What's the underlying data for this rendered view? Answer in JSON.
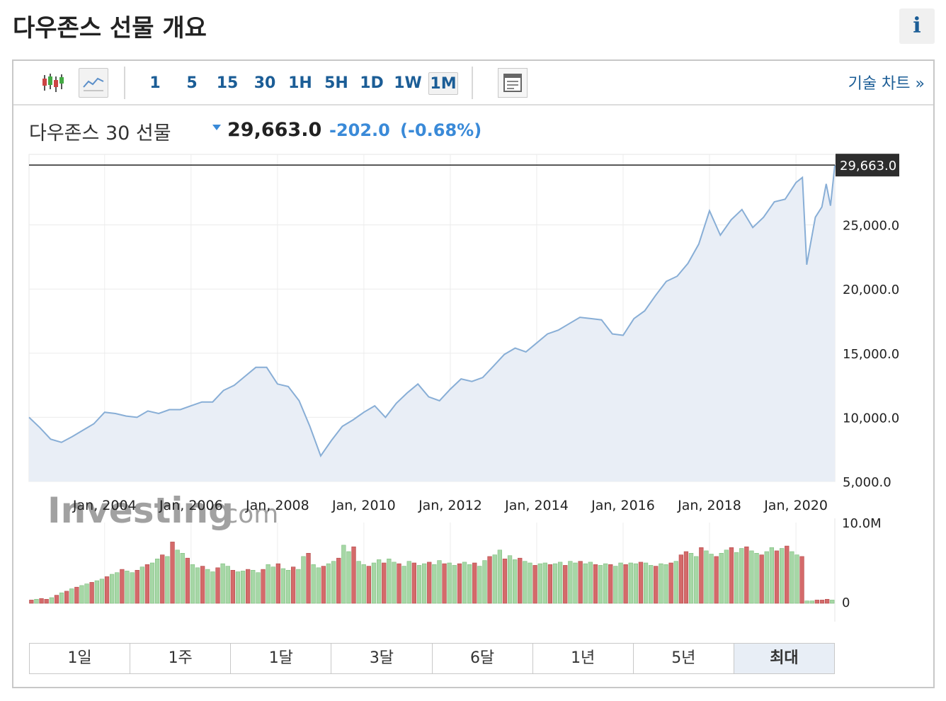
{
  "page": {
    "title": "다우존스 선물 개요",
    "info_icon_label": "i"
  },
  "toolbar": {
    "icons": [
      "candlestick-icon",
      "line-chart-icon",
      "layout-icon"
    ],
    "intervals": [
      "1",
      "5",
      "15",
      "30",
      "1H",
      "5H",
      "1D",
      "1W",
      "1M"
    ],
    "selected_interval": "1M",
    "tech_chart_link": "기술 차트 »"
  },
  "quote": {
    "name": "다우존스 30 선물",
    "price": "29,663.0",
    "change": "-202.0",
    "change_pct": "(-0.68%)",
    "accent_color": "#3a8ad8"
  },
  "chart_data": {
    "type": "area",
    "x_ticks": [
      "Jan, 2004",
      "Jan, 2006",
      "Jan, 2008",
      "Jan, 2010",
      "Jan, 2012",
      "Jan, 2014",
      "Jan, 2016",
      "Jan, 2018",
      "Jan, 2020"
    ],
    "y_ticks": [
      "5,000.0",
      "10,000.0",
      "15,000.0",
      "20,000.0",
      "25,000.0"
    ],
    "ylim": [
      5000,
      30500
    ],
    "x_range": [
      2002.25,
      2020.9
    ],
    "last_price_label": "29,663.0",
    "last_price": 29663,
    "watermark": {
      "brand": "Investing",
      "suffix": ".com"
    },
    "price_series": [
      [
        2002.25,
        10000
      ],
      [
        2002.5,
        9200
      ],
      [
        2002.75,
        8300
      ],
      [
        2003.0,
        8050
      ],
      [
        2003.25,
        8500
      ],
      [
        2003.5,
        9000
      ],
      [
        2003.75,
        9500
      ],
      [
        2004.0,
        10400
      ],
      [
        2004.25,
        10300
      ],
      [
        2004.5,
        10100
      ],
      [
        2004.75,
        10000
      ],
      [
        2005.0,
        10500
      ],
      [
        2005.25,
        10300
      ],
      [
        2005.5,
        10600
      ],
      [
        2005.75,
        10600
      ],
      [
        2006.0,
        10900
      ],
      [
        2006.25,
        11200
      ],
      [
        2006.5,
        11200
      ],
      [
        2006.75,
        12100
      ],
      [
        2007.0,
        12500
      ],
      [
        2007.25,
        13200
      ],
      [
        2007.5,
        13900
      ],
      [
        2007.75,
        13900
      ],
      [
        2008.0,
        12600
      ],
      [
        2008.25,
        12400
      ],
      [
        2008.5,
        11300
      ],
      [
        2008.75,
        9300
      ],
      [
        2009.0,
        7000
      ],
      [
        2009.25,
        8200
      ],
      [
        2009.5,
        9300
      ],
      [
        2009.75,
        9800
      ],
      [
        2010.0,
        10400
      ],
      [
        2010.25,
        10900
      ],
      [
        2010.5,
        10000
      ],
      [
        2010.75,
        11100
      ],
      [
        2011.0,
        11900
      ],
      [
        2011.25,
        12600
      ],
      [
        2011.5,
        11600
      ],
      [
        2011.75,
        11300
      ],
      [
        2012.0,
        12200
      ],
      [
        2012.25,
        13000
      ],
      [
        2012.5,
        12800
      ],
      [
        2012.75,
        13100
      ],
      [
        2013.0,
        14000
      ],
      [
        2013.25,
        14900
      ],
      [
        2013.5,
        15400
      ],
      [
        2013.75,
        15100
      ],
      [
        2014.0,
        15800
      ],
      [
        2014.25,
        16500
      ],
      [
        2014.5,
        16800
      ],
      [
        2014.75,
        17300
      ],
      [
        2015.0,
        17800
      ],
      [
        2015.25,
        17700
      ],
      [
        2015.5,
        17600
      ],
      [
        2015.75,
        16500
      ],
      [
        2016.0,
        16400
      ],
      [
        2016.25,
        17700
      ],
      [
        2016.5,
        18300
      ],
      [
        2016.75,
        19500
      ],
      [
        2017.0,
        20600
      ],
      [
        2017.25,
        21000
      ],
      [
        2017.5,
        22000
      ],
      [
        2017.75,
        23500
      ],
      [
        2018.0,
        26100
      ],
      [
        2018.25,
        24200
      ],
      [
        2018.5,
        25400
      ],
      [
        2018.75,
        26200
      ],
      [
        2019.0,
        24800
      ],
      [
        2019.25,
        25600
      ],
      [
        2019.5,
        26800
      ],
      [
        2019.75,
        27000
      ],
      [
        2020.0,
        28300
      ],
      [
        2020.15,
        28700
      ],
      [
        2020.25,
        21900
      ],
      [
        2020.45,
        25600
      ],
      [
        2020.6,
        26400
      ],
      [
        2020.7,
        28200
      ],
      [
        2020.8,
        26500
      ],
      [
        2020.9,
        29663
      ]
    ],
    "volume": {
      "ylim": [
        0,
        10000000
      ],
      "y_ticks": [
        "10.0M",
        "0"
      ],
      "up_color": "#a6d7a6",
      "down_color": "#d46a6a",
      "bars": [
        [
          0.4,
          "d"
        ],
        [
          0.5,
          "u"
        ],
        [
          0.6,
          "d"
        ],
        [
          0.5,
          "d"
        ],
        [
          0.7,
          "u"
        ],
        [
          1.0,
          "d"
        ],
        [
          1.3,
          "u"
        ],
        [
          1.5,
          "d"
        ],
        [
          1.8,
          "u"
        ],
        [
          2.0,
          "d"
        ],
        [
          2.2,
          "u"
        ],
        [
          2.4,
          "u"
        ],
        [
          2.6,
          "d"
        ],
        [
          2.8,
          "u"
        ],
        [
          3.0,
          "u"
        ],
        [
          3.3,
          "d"
        ],
        [
          3.6,
          "u"
        ],
        [
          3.8,
          "u"
        ],
        [
          4.2,
          "d"
        ],
        [
          4.0,
          "u"
        ],
        [
          3.8,
          "u"
        ],
        [
          4.1,
          "d"
        ],
        [
          4.5,
          "u"
        ],
        [
          4.8,
          "d"
        ],
        [
          5.0,
          "u"
        ],
        [
          5.5,
          "u"
        ],
        [
          6.0,
          "d"
        ],
        [
          5.8,
          "u"
        ],
        [
          7.6,
          "d"
        ],
        [
          6.6,
          "u"
        ],
        [
          6.2,
          "u"
        ],
        [
          5.6,
          "d"
        ],
        [
          4.8,
          "u"
        ],
        [
          4.4,
          "u"
        ],
        [
          4.6,
          "d"
        ],
        [
          4.2,
          "u"
        ],
        [
          3.9,
          "u"
        ],
        [
          4.4,
          "d"
        ],
        [
          4.9,
          "u"
        ],
        [
          4.6,
          "u"
        ],
        [
          4.1,
          "d"
        ],
        [
          3.9,
          "u"
        ],
        [
          4.0,
          "u"
        ],
        [
          4.2,
          "d"
        ],
        [
          4.1,
          "u"
        ],
        [
          3.8,
          "u"
        ],
        [
          4.2,
          "d"
        ],
        [
          4.8,
          "u"
        ],
        [
          4.5,
          "u"
        ],
        [
          4.9,
          "d"
        ],
        [
          4.3,
          "u"
        ],
        [
          4.1,
          "u"
        ],
        [
          4.5,
          "d"
        ],
        [
          4.2,
          "u"
        ],
        [
          5.8,
          "u"
        ],
        [
          6.2,
          "d"
        ],
        [
          4.8,
          "u"
        ],
        [
          4.4,
          "u"
        ],
        [
          4.6,
          "d"
        ],
        [
          4.9,
          "u"
        ],
        [
          5.2,
          "u"
        ],
        [
          5.6,
          "d"
        ],
        [
          7.2,
          "u"
        ],
        [
          6.4,
          "u"
        ],
        [
          7.0,
          "d"
        ],
        [
          5.2,
          "u"
        ],
        [
          4.8,
          "u"
        ],
        [
          4.6,
          "d"
        ],
        [
          5.0,
          "u"
        ],
        [
          5.4,
          "u"
        ],
        [
          5.0,
          "d"
        ],
        [
          5.5,
          "u"
        ],
        [
          5.1,
          "u"
        ],
        [
          4.9,
          "d"
        ],
        [
          4.6,
          "u"
        ],
        [
          5.2,
          "u"
        ],
        [
          5.0,
          "d"
        ],
        [
          4.7,
          "u"
        ],
        [
          4.9,
          "u"
        ],
        [
          5.1,
          "d"
        ],
        [
          4.8,
          "u"
        ],
        [
          5.3,
          "u"
        ],
        [
          4.9,
          "d"
        ],
        [
          5.0,
          "u"
        ],
        [
          4.7,
          "u"
        ],
        [
          4.9,
          "d"
        ],
        [
          5.1,
          "u"
        ],
        [
          4.8,
          "u"
        ],
        [
          5.0,
          "d"
        ],
        [
          4.6,
          "u"
        ],
        [
          5.3,
          "u"
        ],
        [
          5.8,
          "d"
        ],
        [
          6.0,
          "u"
        ],
        [
          6.6,
          "u"
        ],
        [
          5.5,
          "d"
        ],
        [
          5.9,
          "u"
        ],
        [
          5.4,
          "u"
        ],
        [
          5.6,
          "d"
        ],
        [
          5.2,
          "u"
        ],
        [
          5.0,
          "u"
        ],
        [
          4.7,
          "d"
        ],
        [
          4.9,
          "u"
        ],
        [
          5.0,
          "u"
        ],
        [
          4.8,
          "d"
        ],
        [
          4.9,
          "u"
        ],
        [
          5.1,
          "u"
        ],
        [
          4.7,
          "d"
        ],
        [
          5.2,
          "u"
        ],
        [
          5.0,
          "u"
        ],
        [
          5.2,
          "d"
        ],
        [
          4.9,
          "u"
        ],
        [
          5.1,
          "u"
        ],
        [
          4.8,
          "d"
        ],
        [
          4.7,
          "u"
        ],
        [
          4.9,
          "u"
        ],
        [
          4.8,
          "d"
        ],
        [
          4.6,
          "u"
        ],
        [
          5.0,
          "u"
        ],
        [
          4.8,
          "d"
        ],
        [
          5.0,
          "u"
        ],
        [
          4.9,
          "u"
        ],
        [
          5.1,
          "d"
        ],
        [
          5.0,
          "u"
        ],
        [
          4.7,
          "u"
        ],
        [
          4.6,
          "d"
        ],
        [
          4.9,
          "u"
        ],
        [
          4.8,
          "u"
        ],
        [
          5.0,
          "d"
        ],
        [
          5.2,
          "u"
        ],
        [
          6.0,
          "d"
        ],
        [
          6.4,
          "d"
        ],
        [
          6.2,
          "u"
        ],
        [
          5.8,
          "u"
        ],
        [
          6.9,
          "d"
        ],
        [
          6.5,
          "u"
        ],
        [
          6.1,
          "u"
        ],
        [
          5.8,
          "d"
        ],
        [
          6.2,
          "u"
        ],
        [
          6.6,
          "u"
        ],
        [
          6.9,
          "d"
        ],
        [
          6.3,
          "u"
        ],
        [
          6.8,
          "u"
        ],
        [
          7.0,
          "d"
        ],
        [
          6.5,
          "u"
        ],
        [
          6.2,
          "u"
        ],
        [
          6.0,
          "d"
        ],
        [
          6.4,
          "u"
        ],
        [
          6.9,
          "u"
        ],
        [
          6.5,
          "d"
        ],
        [
          6.8,
          "u"
        ],
        [
          7.1,
          "d"
        ],
        [
          6.4,
          "u"
        ],
        [
          6.0,
          "u"
        ],
        [
          5.8,
          "d"
        ],
        [
          0.3,
          "u"
        ],
        [
          0.3,
          "u"
        ],
        [
          0.4,
          "d"
        ],
        [
          0.4,
          "d"
        ],
        [
          0.5,
          "d"
        ],
        [
          0.4,
          "u"
        ]
      ]
    }
  },
  "ranges": {
    "items": [
      "1일",
      "1주",
      "1달",
      "3달",
      "6달",
      "1년",
      "5년",
      "최대"
    ],
    "selected": "최대"
  }
}
